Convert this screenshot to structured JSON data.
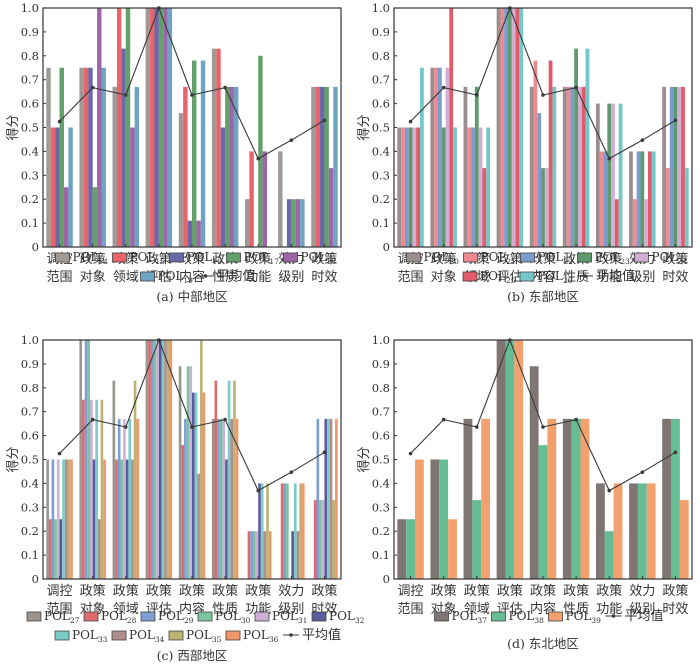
{
  "chart_data": [
    {
      "id": "a",
      "type": "bar",
      "title": "(a) 中部地区",
      "ylabel": "得分",
      "xlabel": "",
      "ylim": [
        0,
        1.0
      ],
      "yticks": [
        "0",
        "0.1",
        "0.2",
        "0.3",
        "0.4",
        "0.5",
        "0.6",
        "0.7",
        "0.8",
        "0.9",
        "1.0"
      ],
      "categories": [
        [
          "调控",
          "范围"
        ],
        [
          "政策",
          "对象"
        ],
        [
          "政策",
          "领域"
        ],
        [
          "政策",
          "评估"
        ],
        [
          "政策",
          "内容"
        ],
        [
          "政策",
          "性质"
        ],
        [
          "政策",
          "功能"
        ],
        [
          "效力",
          "级别"
        ],
        [
          "政策",
          "时效"
        ]
      ],
      "series": [
        {
          "name": "POL",
          "sub": "14",
          "color": "#a09a97",
          "values": [
            0.75,
            0.75,
            0.67,
            1.0,
            0.56,
            0.83,
            0.2,
            0.4,
            0.67
          ]
        },
        {
          "name": "POL",
          "sub": "15",
          "color": "#e8646a",
          "values": [
            0.5,
            0.75,
            1.0,
            1.0,
            0.67,
            0.83,
            0.4,
            0,
            0.67
          ]
        },
        {
          "name": "POL",
          "sub": "16",
          "color": "#6b68a8",
          "values": [
            0.5,
            0.75,
            0.83,
            1.0,
            0.11,
            0.5,
            0,
            0.2,
            0.67
          ]
        },
        {
          "name": "POL",
          "sub": "17",
          "color": "#64a06a",
          "values": [
            0.75,
            0.25,
            1.0,
            1.0,
            0.78,
            0.67,
            0.8,
            0.2,
            0.67
          ]
        },
        {
          "name": "POL",
          "sub": "18",
          "color": "#9e66a8",
          "values": [
            0.25,
            1.0,
            0.5,
            1.0,
            0.11,
            0.67,
            0.4,
            0.2,
            0.33
          ]
        },
        {
          "name": "POL",
          "sub": "19",
          "color": "#6fa3c2",
          "values": [
            0.5,
            0.75,
            0.67,
            1.0,
            0.78,
            0.67,
            0,
            0.2,
            0.67
          ]
        }
      ],
      "average": {
        "name": "平均值",
        "values": [
          0.525,
          0.667,
          0.636,
          1.0,
          0.636,
          0.667,
          0.37,
          0.447,
          0.53
        ]
      },
      "legend_rows": [
        [
          0,
          1,
          2,
          3,
          4
        ],
        [
          5,
          "avg"
        ]
      ]
    },
    {
      "id": "b",
      "type": "bar",
      "title": "(b) 东部地区",
      "ylabel": "得分",
      "xlabel": "",
      "ylim": [
        0,
        1.0
      ],
      "yticks": [
        "0",
        "0.1",
        "0.2",
        "0.3",
        "0.4",
        "0.5",
        "0.6",
        "0.7",
        "0.8",
        "0.9",
        "1.0"
      ],
      "categories": [
        [
          "调控",
          "范围"
        ],
        [
          "政策",
          "对象"
        ],
        [
          "政策",
          "领域"
        ],
        [
          "政策",
          "评估"
        ],
        [
          "政策",
          "内容"
        ],
        [
          "政策",
          "性质"
        ],
        [
          "政策",
          "功能"
        ],
        [
          "效力",
          "级别"
        ],
        [
          "政策",
          "时效"
        ]
      ],
      "series": [
        {
          "name": "POL",
          "sub": "20",
          "color": "#9a8f8e",
          "values": [
            0.5,
            0.75,
            0.67,
            1.0,
            0.67,
            0.67,
            0.6,
            0.4,
            0.67
          ]
        },
        {
          "name": "POL",
          "sub": "21",
          "color": "#ee8a90",
          "values": [
            0.5,
            0.75,
            0.5,
            1.0,
            0.78,
            0.67,
            0.4,
            0.2,
            0.33
          ]
        },
        {
          "name": "POL",
          "sub": "22",
          "color": "#7b9ccd",
          "values": [
            0.5,
            0.75,
            0.5,
            1.0,
            0.56,
            0.67,
            0.4,
            0.4,
            0.67
          ]
        },
        {
          "name": "POL",
          "sub": "23",
          "color": "#5e9a6e",
          "values": [
            0.5,
            0.5,
            0.67,
            1.0,
            0.33,
            0.83,
            0.6,
            0.4,
            0.67
          ]
        },
        {
          "name": "POL",
          "sub": "24",
          "color": "#d3aed3",
          "values": [
            0.5,
            0.75,
            0.5,
            1.0,
            0.33,
            0.67,
            0.6,
            0.2,
            0.67
          ]
        },
        {
          "name": "POL",
          "sub": "25",
          "color": "#e35a68",
          "values": [
            0.5,
            1.0,
            0.33,
            1.0,
            0.78,
            0.67,
            0.2,
            0.4,
            0.67
          ]
        },
        {
          "name": "POL",
          "sub": "26",
          "color": "#74c8c9",
          "values": [
            0.75,
            0.5,
            0.5,
            1.0,
            0.67,
            0.83,
            0.6,
            0.4,
            0.33
          ]
        }
      ],
      "average": {
        "name": "平均值",
        "values": [
          0.525,
          0.667,
          0.636,
          1.0,
          0.636,
          0.667,
          0.37,
          0.447,
          0.53
        ]
      },
      "legend_rows": [
        [
          0,
          1,
          2,
          3,
          4
        ],
        [
          5,
          6,
          "avg"
        ]
      ]
    },
    {
      "id": "c",
      "type": "bar",
      "title": "(c) 西部地区",
      "ylabel": "得分",
      "xlabel": "",
      "ylim": [
        0,
        1.0
      ],
      "yticks": [
        "0",
        "0.1",
        "0.2",
        "0.3",
        "0.4",
        "0.5",
        "0.6",
        "0.7",
        "0.8",
        "0.9",
        "1.0"
      ],
      "categories": [
        [
          "调控",
          "范围"
        ],
        [
          "政策",
          "对象"
        ],
        [
          "政策",
          "领域"
        ],
        [
          "政策",
          "评估"
        ],
        [
          "政策",
          "内容"
        ],
        [
          "政策",
          "性质"
        ],
        [
          "政策",
          "功能"
        ],
        [
          "效力",
          "级别"
        ],
        [
          "政策",
          "时效"
        ]
      ],
      "series": [
        {
          "name": "POL",
          "sub": "27",
          "color": "#9b9591",
          "values": [
            0.5,
            1.0,
            0.83,
            1.0,
            0.89,
            0.67,
            0,
            0,
            0
          ]
        },
        {
          "name": "POL",
          "sub": "28",
          "color": "#df6a6e",
          "values": [
            0.25,
            0.75,
            0.5,
            1.0,
            0.56,
            0.83,
            0.2,
            0.4,
            0.33
          ]
        },
        {
          "name": "POL",
          "sub": "29",
          "color": "#7f9ed2",
          "values": [
            0.5,
            1.0,
            0.67,
            1.0,
            0.67,
            0.67,
            0.2,
            0.4,
            0.67
          ]
        },
        {
          "name": "POL",
          "sub": "30",
          "color": "#7cc4a0",
          "values": [
            0.25,
            1.0,
            0.5,
            1.0,
            0.89,
            0.67,
            0.2,
            0.4,
            0.33
          ]
        },
        {
          "name": "POL",
          "sub": "31",
          "color": "#ccb0d6",
          "values": [
            0.5,
            0.75,
            0.67,
            1.0,
            0.89,
            0.67,
            0.2,
            0,
            0.33
          ]
        },
        {
          "name": "POL",
          "sub": "32",
          "color": "#5b5a9c",
          "values": [
            0.25,
            0.5,
            0.5,
            1.0,
            0.78,
            0.5,
            0.4,
            0.2,
            0.67
          ]
        },
        {
          "name": "POL",
          "sub": "33",
          "color": "#7accc8",
          "values": [
            0.5,
            0.75,
            0.67,
            1.0,
            0.78,
            0.83,
            0.4,
            0.4,
            0.67
          ]
        },
        {
          "name": "POL",
          "sub": "34",
          "color": "#b08e8c",
          "values": [
            0.5,
            0.25,
            0.5,
            1.0,
            0.44,
            0.67,
            0.2,
            0.2,
            0.67
          ]
        },
        {
          "name": "POL",
          "sub": "35",
          "color": "#bdb272",
          "values": [
            0.5,
            0.75,
            0.83,
            1.0,
            1.0,
            0.83,
            0.4,
            0.4,
            0.33
          ]
        },
        {
          "name": "POL",
          "sub": "36",
          "color": "#f0976a",
          "values": [
            0.5,
            0.5,
            0.67,
            1.0,
            0.78,
            0.67,
            0.2,
            0.4,
            0.67
          ]
        }
      ],
      "average": {
        "name": "平均值",
        "values": [
          0.525,
          0.667,
          0.636,
          1.0,
          0.636,
          0.667,
          0.37,
          0.447,
          0.53
        ]
      },
      "legend_rows": [
        [
          0,
          1,
          2,
          3,
          4,
          5
        ],
        [
          6,
          7,
          8,
          9,
          "avg"
        ]
      ]
    },
    {
      "id": "d",
      "type": "bar",
      "title": "(d) 东北地区",
      "ylabel": "得分",
      "xlabel": "",
      "ylim": [
        0,
        1.0
      ],
      "yticks": [
        "0",
        "0.1",
        "0.2",
        "0.3",
        "0.4",
        "0.5",
        "0.6",
        "0.7",
        "0.8",
        "0.9",
        "1.0"
      ],
      "categories": [
        [
          "调控",
          "范围"
        ],
        [
          "政策",
          "对象"
        ],
        [
          "政策",
          "领域"
        ],
        [
          "政策",
          "评估"
        ],
        [
          "政策",
          "内容"
        ],
        [
          "政策",
          "性质"
        ],
        [
          "政策",
          "功能"
        ],
        [
          "效力",
          "级别"
        ],
        [
          "政策",
          "时效"
        ]
      ],
      "series": [
        {
          "name": "POL",
          "sub": "37",
          "color": "#7f7674",
          "values": [
            0.25,
            0.5,
            0.67,
            1.0,
            0.89,
            0.67,
            0.4,
            0.4,
            0.67
          ]
        },
        {
          "name": "POL",
          "sub": "38",
          "color": "#66bd94",
          "values": [
            0.25,
            0.5,
            0.33,
            1.0,
            0.56,
            0.67,
            0.2,
            0.4,
            0.67
          ]
        },
        {
          "name": "POL",
          "sub": "39",
          "color": "#f2a06e",
          "values": [
            0.5,
            0.25,
            0.67,
            1.0,
            0.67,
            0.67,
            0.4,
            0.4,
            0.33
          ]
        }
      ],
      "average": {
        "name": "平均值",
        "values": [
          0.525,
          0.667,
          0.636,
          1.0,
          0.636,
          0.667,
          0.37,
          0.447,
          0.53
        ]
      },
      "legend_rows": [
        [
          0,
          1,
          2,
          "avg"
        ]
      ]
    }
  ]
}
